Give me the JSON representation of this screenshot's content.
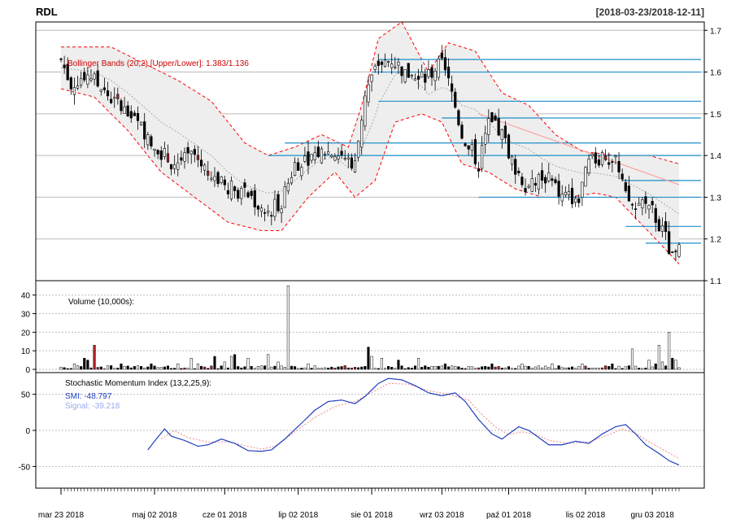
{
  "header": {
    "symbol": "RDL",
    "date_range": "[2018-03-23/2018-12-11]"
  },
  "colors": {
    "up_candle": "#ffffff",
    "down_candle": "#000000",
    "down_gap_candle": "#b22222",
    "bands_line": "#ff0000",
    "bands_fill": "#eeeeee",
    "sma_line": "#aaaaaa",
    "smi_line": "#1f3fbf",
    "signal_line": "#ee8888",
    "level_lines": "#1e8fc8",
    "trend_line": "#ff9999"
  },
  "chart_data": {
    "type": "candlestick",
    "x_ticks": [
      "mar 23 2018",
      "maj 02 2018",
      "cze 01 2018",
      "lip 02 2018",
      "sie 01 2018",
      "wrz 03 2018",
      "paź 01 2018",
      "lis 02 2018",
      "gru 03 2018"
    ],
    "x_tick_indices": [
      0,
      28,
      49,
      71,
      93,
      114,
      134,
      157,
      177
    ],
    "n_periods": 186,
    "price_panel": {
      "ylim": [
        1.1,
        1.72
      ],
      "yticks": [
        1.1,
        1.2,
        1.3,
        1.4,
        1.5,
        1.6,
        1.7
      ],
      "ytick_labels": [
        "1.1",
        "1.2",
        "1.3",
        "1.4",
        "1.5",
        "1.6",
        "1.7"
      ],
      "legend": "Bollinger Bands (20,2) [Upper/Lower]: 1.383/1.136",
      "close_anchors": [
        [
          0,
          1.63
        ],
        [
          3,
          1.57
        ],
        [
          8,
          1.6
        ],
        [
          13,
          1.55
        ],
        [
          20,
          1.5
        ],
        [
          26,
          1.45
        ],
        [
          33,
          1.38
        ],
        [
          40,
          1.4
        ],
        [
          46,
          1.34
        ],
        [
          52,
          1.32
        ],
        [
          57,
          1.3
        ],
        [
          61,
          1.26
        ],
        [
          66,
          1.29
        ],
        [
          70,
          1.38
        ],
        [
          75,
          1.4
        ],
        [
          79,
          1.41
        ],
        [
          84,
          1.4
        ],
        [
          88,
          1.38
        ],
        [
          91,
          1.55
        ],
        [
          95,
          1.62
        ],
        [
          99,
          1.63
        ],
        [
          103,
          1.6
        ],
        [
          107,
          1.58
        ],
        [
          111,
          1.6
        ],
        [
          114,
          1.62
        ],
        [
          117,
          1.55
        ],
        [
          120,
          1.45
        ],
        [
          125,
          1.38
        ],
        [
          128,
          1.48
        ],
        [
          132,
          1.45
        ],
        [
          136,
          1.37
        ],
        [
          140,
          1.32
        ],
        [
          145,
          1.35
        ],
        [
          150,
          1.3
        ],
        [
          155,
          1.3
        ],
        [
          158,
          1.38
        ],
        [
          162,
          1.4
        ],
        [
          166,
          1.38
        ],
        [
          169,
          1.3
        ],
        [
          172,
          1.27
        ],
        [
          175,
          1.3
        ],
        [
          178,
          1.25
        ],
        [
          181,
          1.2
        ],
        [
          183,
          1.15
        ],
        [
          185,
          1.17
        ]
      ],
      "bands_upper_anchors": [
        [
          0,
          1.66
        ],
        [
          15,
          1.66
        ],
        [
          25,
          1.62
        ],
        [
          35,
          1.58
        ],
        [
          45,
          1.53
        ],
        [
          55,
          1.43
        ],
        [
          62,
          1.4
        ],
        [
          70,
          1.42
        ],
        [
          78,
          1.45
        ],
        [
          86,
          1.42
        ],
        [
          90,
          1.52
        ],
        [
          95,
          1.68
        ],
        [
          102,
          1.72
        ],
        [
          110,
          1.6
        ],
        [
          116,
          1.67
        ],
        [
          124,
          1.65
        ],
        [
          132,
          1.55
        ],
        [
          140,
          1.52
        ],
        [
          148,
          1.45
        ],
        [
          156,
          1.41
        ],
        [
          166,
          1.4
        ],
        [
          176,
          1.4
        ],
        [
          185,
          1.38
        ]
      ],
      "bands_lower_anchors": [
        [
          0,
          1.56
        ],
        [
          10,
          1.54
        ],
        [
          20,
          1.46
        ],
        [
          30,
          1.36
        ],
        [
          40,
          1.3
        ],
        [
          50,
          1.24
        ],
        [
          60,
          1.22
        ],
        [
          66,
          1.22
        ],
        [
          74,
          1.3
        ],
        [
          82,
          1.36
        ],
        [
          88,
          1.3
        ],
        [
          94,
          1.34
        ],
        [
          100,
          1.48
        ],
        [
          108,
          1.5
        ],
        [
          114,
          1.48
        ],
        [
          120,
          1.38
        ],
        [
          128,
          1.36
        ],
        [
          136,
          1.32
        ],
        [
          144,
          1.3
        ],
        [
          152,
          1.3
        ],
        [
          160,
          1.31
        ],
        [
          166,
          1.3
        ],
        [
          172,
          1.25
        ],
        [
          178,
          1.2
        ],
        [
          185,
          1.14
        ]
      ],
      "horizontal_levels": [
        {
          "y": 1.63,
          "start": 95
        },
        {
          "y": 1.6,
          "start": 93
        },
        {
          "y": 1.53,
          "start": 95
        },
        {
          "y": 1.49,
          "start": 114
        },
        {
          "y": 1.43,
          "start": 67
        },
        {
          "y": 1.4,
          "start": 62
        },
        {
          "y": 1.34,
          "start": 168
        },
        {
          "y": 1.3,
          "start": 125
        },
        {
          "y": 1.23,
          "start": 169
        },
        {
          "y": 1.19,
          "start": 175
        }
      ],
      "trend_line": {
        "from": [
          125,
          1.5
        ],
        "to": [
          185,
          1.33
        ]
      }
    },
    "volume_panel": {
      "label": "Volume (10,000s):",
      "ylim": [
        0,
        46
      ],
      "yticks": [
        0,
        10,
        20,
        30,
        40
      ],
      "ytick_labels": [
        "0",
        "10",
        "20",
        "30",
        "40"
      ],
      "spikes": [
        [
          4,
          3
        ],
        [
          7,
          6
        ],
        [
          8,
          5
        ],
        [
          10,
          13
        ],
        [
          15,
          2
        ],
        [
          18,
          3
        ],
        [
          27,
          3
        ],
        [
          35,
          3
        ],
        [
          39,
          6
        ],
        [
          41,
          3
        ],
        [
          46,
          7
        ],
        [
          49,
          4
        ],
        [
          51,
          7
        ],
        [
          52,
          8
        ],
        [
          56,
          6
        ],
        [
          62,
          8
        ],
        [
          65,
          4
        ],
        [
          68,
          45
        ],
        [
          74,
          3
        ],
        [
          85,
          2
        ],
        [
          92,
          12
        ],
        [
          93,
          7
        ],
        [
          96,
          6
        ],
        [
          101,
          5
        ],
        [
          107,
          6
        ],
        [
          115,
          3
        ],
        [
          129,
          3
        ],
        [
          138,
          3
        ],
        [
          147,
          3
        ],
        [
          156,
          3
        ],
        [
          165,
          3
        ],
        [
          171,
          11
        ],
        [
          176,
          5
        ],
        [
          178,
          3
        ],
        [
          179,
          13
        ],
        [
          180,
          4
        ],
        [
          182,
          20
        ],
        [
          183,
          6
        ],
        [
          184,
          5
        ]
      ]
    },
    "smi_panel": {
      "label": "Stochastic Momentum Index (13,2,25,9):",
      "smi_label": "SMI: -48.797",
      "signal_label": "Signal: -39.218",
      "ylim": [
        -80,
        80
      ],
      "yticks": [
        -50,
        0,
        50
      ],
      "ytick_labels": [
        "-50",
        "0",
        "50"
      ],
      "smi_start": 26,
      "smi_anchors": [
        [
          26,
          -27
        ],
        [
          28,
          -15
        ],
        [
          31,
          2
        ],
        [
          33,
          -8
        ],
        [
          37,
          -14
        ],
        [
          41,
          -22
        ],
        [
          44,
          -20
        ],
        [
          48,
          -12
        ],
        [
          52,
          -18
        ],
        [
          56,
          -28
        ],
        [
          60,
          -29
        ],
        [
          63,
          -27
        ],
        [
          67,
          -12
        ],
        [
          72,
          10
        ],
        [
          76,
          28
        ],
        [
          80,
          40
        ],
        [
          84,
          42
        ],
        [
          88,
          37
        ],
        [
          91,
          47
        ],
        [
          95,
          65
        ],
        [
          98,
          72
        ],
        [
          102,
          70
        ],
        [
          106,
          62
        ],
        [
          110,
          52
        ],
        [
          114,
          48
        ],
        [
          118,
          52
        ],
        [
          121,
          40
        ],
        [
          125,
          15
        ],
        [
          129,
          -5
        ],
        [
          132,
          -12
        ],
        [
          134,
          -5
        ],
        [
          137,
          5
        ],
        [
          140,
          0
        ],
        [
          143,
          -10
        ],
        [
          146,
          -20
        ],
        [
          150,
          -20
        ],
        [
          154,
          -15
        ],
        [
          158,
          -18
        ],
        [
          162,
          -5
        ],
        [
          166,
          5
        ],
        [
          169,
          8
        ],
        [
          172,
          -5
        ],
        [
          175,
          -20
        ],
        [
          179,
          -32
        ],
        [
          182,
          -42
        ],
        [
          185,
          -48
        ]
      ],
      "signal_anchors": [
        [
          30,
          -12
        ],
        [
          34,
          0
        ],
        [
          38,
          -10
        ],
        [
          44,
          -16
        ],
        [
          50,
          -16
        ],
        [
          56,
          -22
        ],
        [
          60,
          -26
        ],
        [
          64,
          -22
        ],
        [
          70,
          -2
        ],
        [
          76,
          18
        ],
        [
          82,
          33
        ],
        [
          88,
          40
        ],
        [
          94,
          55
        ],
        [
          98,
          65
        ],
        [
          104,
          64
        ],
        [
          110,
          55
        ],
        [
          116,
          50
        ],
        [
          122,
          42
        ],
        [
          126,
          22
        ],
        [
          130,
          5
        ],
        [
          134,
          -6
        ],
        [
          138,
          -2
        ],
        [
          142,
          -5
        ],
        [
          146,
          -14
        ],
        [
          152,
          -18
        ],
        [
          158,
          -16
        ],
        [
          164,
          -6
        ],
        [
          168,
          2
        ],
        [
          172,
          -4
        ],
        [
          176,
          -16
        ],
        [
          180,
          -26
        ],
        [
          185,
          -39
        ]
      ]
    }
  }
}
